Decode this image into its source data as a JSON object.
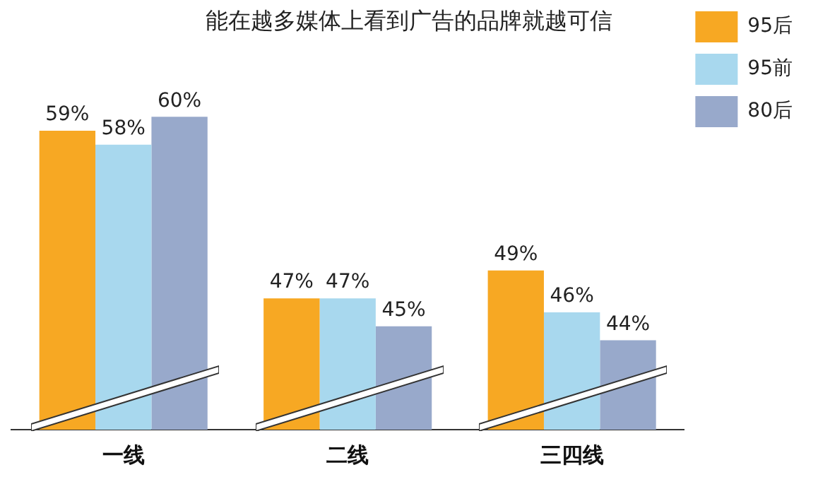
{
  "chart_data": {
    "type": "bar",
    "title": "能在越多媒体上看到广告的品牌就越可信",
    "categories": [
      "一线",
      "二线",
      "三四线"
    ],
    "series": [
      {
        "name": "95后",
        "color": "#f7a823",
        "values": [
          59,
          47,
          49
        ],
        "value_labels": [
          "59%",
          "47%",
          "49%"
        ]
      },
      {
        "name": "95前",
        "color": "#a8d8ee",
        "values": [
          58,
          47,
          46
        ],
        "value_labels": [
          "58%",
          "47%",
          "46%"
        ]
      },
      {
        "name": "80后",
        "color": "#98a9cb",
        "values": [
          60,
          45,
          44
        ],
        "value_labels": [
          "60%",
          "45%",
          "44%"
        ]
      }
    ],
    "tick_labels": "x",
    "legend": "top right"
  }
}
